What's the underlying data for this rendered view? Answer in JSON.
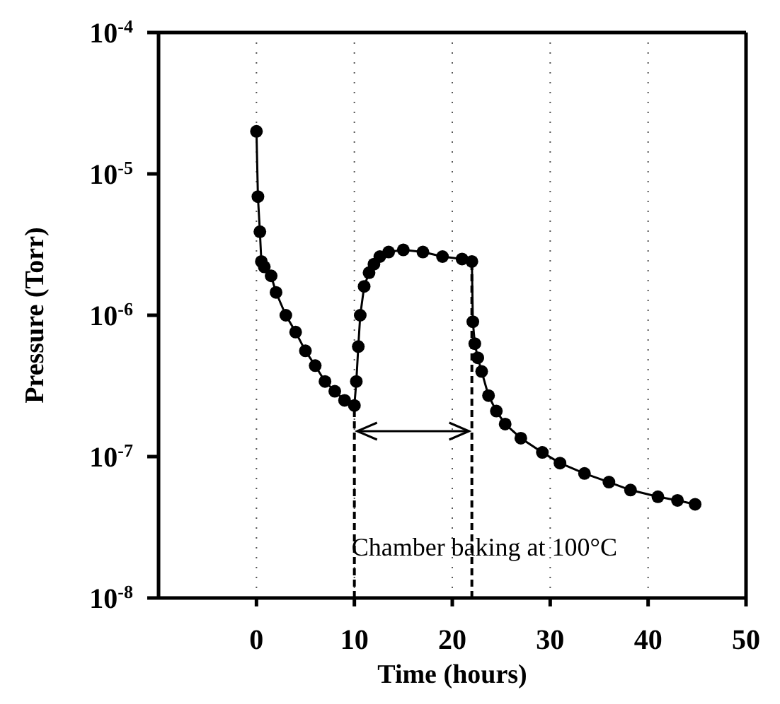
{
  "chart_data": {
    "type": "line",
    "xlabel": "Time (hours)",
    "ylabel": "Pressure (Torr)",
    "log": "y",
    "grid": "x",
    "marker": "circle",
    "line_style": "solid",
    "xlim": [
      -10,
      50
    ],
    "xticks": [
      0,
      10,
      20,
      30,
      40,
      50
    ],
    "ylim": [
      1e-08,
      0.0001
    ],
    "yticks": [
      {
        "value": 1e-08,
        "label": "10$^{-8}$"
      },
      {
        "value": 1e-07,
        "label": "10$^{-7}$"
      },
      {
        "value": 1e-06,
        "label": "10$^{-6}$"
      },
      {
        "value": 1e-05,
        "label": "10$^{-5}$"
      },
      {
        "value": 0.0001,
        "label": "10$^{-4}$"
      }
    ],
    "x": [
      0,
      0.15,
      0.35,
      0.5,
      0.8,
      1.5,
      2,
      3,
      4,
      5,
      6,
      7,
      8,
      9,
      10,
      10.2,
      10.4,
      10.6,
      11,
      11.5,
      12,
      12.6,
      13.5,
      15,
      17,
      19,
      21,
      22,
      22.1,
      22.3,
      22.6,
      23,
      23.7,
      24.5,
      25.4,
      27,
      29.2,
      31,
      33.5,
      36,
      38.2,
      41,
      43,
      44.8
    ],
    "series": [
      {
        "color": "#000000",
        "values": [
          2e-05,
          6.9e-06,
          3.9e-06,
          2.4e-06,
          2.2e-06,
          1.9e-06,
          1.45e-06,
          1e-06,
          7.6e-07,
          5.6e-07,
          4.4e-07,
          3.4e-07,
          2.9e-07,
          2.5e-07,
          2.3e-07,
          3.4e-07,
          6e-07,
          1e-06,
          1.6e-06,
          2e-06,
          2.3e-06,
          2.6e-06,
          2.8e-06,
          2.9e-06,
          2.8e-06,
          2.6e-06,
          2.5e-06,
          2.4e-06,
          9e-07,
          6.3e-07,
          5e-07,
          4e-07,
          2.7e-07,
          2.1e-07,
          1.7e-07,
          1.35e-07,
          1.07e-07,
          9e-08,
          7.6e-08,
          6.6e-08,
          5.8e-08,
          5.2e-08,
          4.9e-08,
          4.6e-08
        ]
      }
    ],
    "ref_lines": [
      {
        "axis": "x",
        "value": 10,
        "line_style": "dashed",
        "color": "#000000"
      },
      {
        "axis": "x",
        "value": 22,
        "line_style": "dashed",
        "color": "#000000"
      }
    ],
    "annotations": [
      "Chamber baking at 100°C"
    ]
  }
}
